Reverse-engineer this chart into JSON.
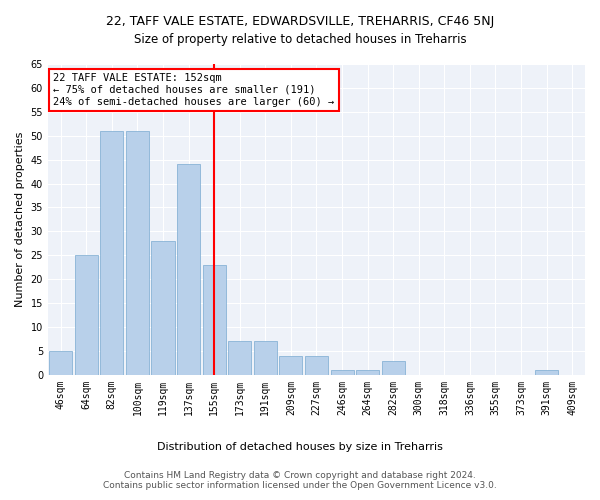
{
  "title1": "22, TAFF VALE ESTATE, EDWARDSVILLE, TREHARRIS, CF46 5NJ",
  "title2": "Size of property relative to detached houses in Treharris",
  "xlabel": "Distribution of detached houses by size in Treharris",
  "ylabel": "Number of detached properties",
  "categories": [
    "46sqm",
    "64sqm",
    "82sqm",
    "100sqm",
    "119sqm",
    "137sqm",
    "155sqm",
    "173sqm",
    "191sqm",
    "209sqm",
    "227sqm",
    "246sqm",
    "264sqm",
    "282sqm",
    "300sqm",
    "318sqm",
    "336sqm",
    "355sqm",
    "373sqm",
    "391sqm",
    "409sqm"
  ],
  "values": [
    5,
    25,
    51,
    51,
    28,
    44,
    23,
    7,
    7,
    4,
    4,
    1,
    1,
    3,
    0,
    0,
    0,
    0,
    0,
    1,
    0
  ],
  "bar_color": "#b8d0ea",
  "bar_edge_color": "#7aaar4",
  "highlight_index": 6,
  "annotation_text": "22 TAFF VALE ESTATE: 152sqm\n← 75% of detached houses are smaller (191)\n24% of semi-detached houses are larger (60) →",
  "annotation_box_color": "white",
  "annotation_box_edge_color": "red",
  "vline_color": "red",
  "ylim": [
    0,
    65
  ],
  "yticks": [
    0,
    5,
    10,
    15,
    20,
    25,
    30,
    35,
    40,
    45,
    50,
    55,
    60,
    65
  ],
  "footer1": "Contains HM Land Registry data © Crown copyright and database right 2024.",
  "footer2": "Contains public sector information licensed under the Open Government Licence v3.0.",
  "bg_color": "#eef2f9",
  "grid_color": "white",
  "title1_fontsize": 9,
  "title2_fontsize": 8.5,
  "axis_label_fontsize": 8,
  "tick_fontsize": 7,
  "footer_fontsize": 6.5,
  "annotation_fontsize": 7.5
}
